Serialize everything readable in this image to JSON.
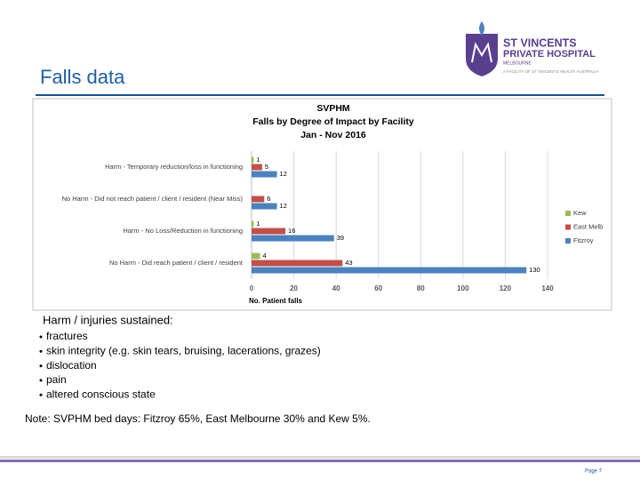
{
  "slide": {
    "title": "Falls data",
    "logo": {
      "line1": "ST VINCENTS",
      "line2": "PRIVATE HOSPITAL",
      "line3": "MELBOURNE",
      "tagline": "A FACILITY OF ST VINCENT'S HEALTH AUSTRALIA"
    },
    "heading": "Harm / injuries sustained:",
    "bullets": [
      "fractures",
      "skin integrity (e.g. skin tears, bruising, lacerations, grazes)",
      "dislocation",
      "pain",
      "altered conscious state"
    ],
    "note": "Note: SVPHM bed days: Fitzroy 65%, East Melbourne 30% and Kew 5%.",
    "page": "Page 7"
  },
  "chart_data": {
    "type": "hbar",
    "title": "SVPHM",
    "subtitle": "Falls by Degree of Impact by Facility",
    "period": "Jan - Nov 2016",
    "x_label": "No. Patient falls",
    "categories": [
      "Harm - Temporary reduction/loss in functioning",
      "No Harm - Did not reach patient / client / resident (Near Miss)",
      "Harm - No Loss/Reduction in functioning",
      "No Harm - Did reach patient / client / resident"
    ],
    "series": [
      {
        "name": "Kew",
        "color": "#9bbb59",
        "values": [
          1,
          null,
          1,
          4
        ]
      },
      {
        "name": "East Melb",
        "color": "#c0504d",
        "values": [
          5,
          6,
          16,
          43
        ]
      },
      {
        "name": "Fitzroy",
        "color": "#4f81bd",
        "values": [
          12,
          12,
          39,
          130
        ]
      }
    ],
    "xlim": [
      0,
      140
    ],
    "xticks": [
      0,
      20,
      40,
      60,
      80,
      100,
      120,
      140
    ],
    "grid": true,
    "legend": "right"
  }
}
